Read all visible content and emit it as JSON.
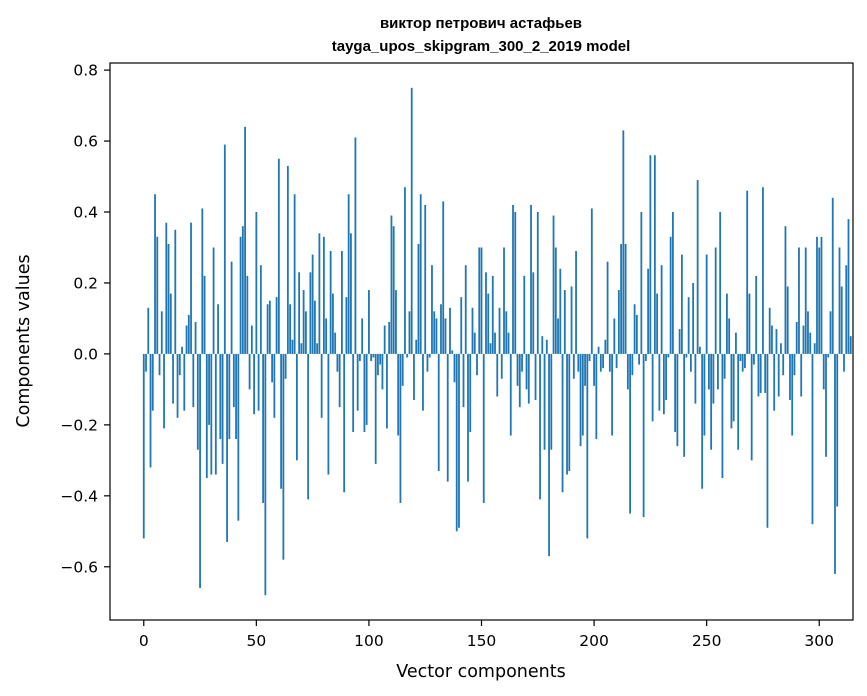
{
  "chart_data": {
    "type": "bar",
    "title": "виктор петрович астафьев",
    "subtitle": "tayga_upos_skipgram_300_2_2019 model",
    "xlabel": "Vector components",
    "ylabel": "Components values",
    "xlim": [
      -15,
      315
    ],
    "ylim": [
      -0.75,
      0.82
    ],
    "xticks": [
      0,
      50,
      100,
      150,
      200,
      250,
      300
    ],
    "yticks": [
      -0.6,
      -0.4,
      -0.2,
      0.0,
      0.2,
      0.4,
      0.6,
      0.8
    ],
    "ytick_labels": [
      "−0.6",
      "−0.4",
      "−0.2",
      "0.0",
      "0.2",
      "0.4",
      "0.6",
      "0.8"
    ],
    "bar_color": "#1f77b4",
    "grid": false,
    "values": [
      -0.52,
      -0.05,
      0.13,
      -0.32,
      -0.16,
      0.45,
      0.33,
      -0.06,
      0.12,
      -0.21,
      0.37,
      0.31,
      0.17,
      -0.14,
      0.35,
      -0.18,
      -0.06,
      0.02,
      -0.16,
      0.08,
      0.11,
      0.37,
      -0.15,
      0.09,
      -0.27,
      -0.66,
      0.41,
      0.22,
      -0.35,
      -0.2,
      -0.34,
      0.3,
      -0.34,
      0.14,
      -0.24,
      -0.31,
      0.59,
      -0.53,
      -0.24,
      0.26,
      -0.15,
      -0.24,
      -0.47,
      0.33,
      0.36,
      0.64,
      0.22,
      -0.1,
      0.08,
      -0.17,
      0.4,
      -0.16,
      0.25,
      -0.42,
      -0.68,
      0.14,
      0.15,
      -0.08,
      -0.18,
      0.16,
      0.55,
      -0.38,
      -0.58,
      -0.07,
      0.53,
      0.14,
      0.04,
      0.45,
      -0.3,
      0.23,
      0.03,
      0.18,
      0.12,
      -0.41,
      0.23,
      0.28,
      0.15,
      0.03,
      0.34,
      -0.18,
      0.33,
      0.1,
      -0.34,
      0.29,
      0.17,
      0.06,
      -0.05,
      -0.15,
      0.29,
      -0.39,
      0.16,
      0.45,
      0.34,
      -0.22,
      0.61,
      -0.16,
      -0.02,
      0.1,
      -0.22,
      -0.2,
      0.18,
      -0.02,
      -0.01,
      -0.31,
      -0.06,
      -0.03,
      -0.1,
      0.08,
      -0.21,
      0.09,
      0.39,
      0.36,
      0.18,
      -0.23,
      -0.42,
      -0.09,
      0.47,
      -0.01,
      0.12,
      0.75,
      -0.13,
      0.04,
      0.31,
      0.45,
      -0.16,
      0.42,
      -0.05,
      -0.01,
      0.25,
      0.12,
      0.1,
      -0.33,
      0.14,
      0.43,
      0.1,
      -0.36,
      0.13,
      0.01,
      -0.08,
      -0.5,
      -0.49,
      0.16,
      -0.15,
      0.25,
      -0.36,
      -0.22,
      0.13,
      0.06,
      -0.06,
      0.3,
      0.3,
      -0.42,
      0.23,
      0.17,
      0.03,
      0.22,
      0.06,
      -0.12,
      0.13,
      -0.07,
      0.3,
      0.12,
      0.06,
      -0.23,
      0.42,
      0.4,
      -0.09,
      -0.15,
      -0.05,
      0.22,
      -0.1,
      -0.14,
      0.42,
      0.23,
      -0.13,
      0.4,
      -0.41,
      0.05,
      -0.27,
      0.04,
      -0.57,
      -0.27,
      0.39,
      0.3,
      0.1,
      0.24,
      -0.39,
      0.18,
      -0.34,
      -0.33,
      0.19,
      -0.07,
      0.29,
      -0.05,
      -0.26,
      -0.23,
      -0.09,
      -0.52,
      -0.02,
      0.41,
      -0.09,
      -0.24,
      0.02,
      -0.05,
      -0.04,
      0.04,
      0.26,
      -0.05,
      -0.23,
      0.1,
      -0.04,
      0.18,
      0.31,
      0.63,
      0.31,
      -0.1,
      -0.45,
      -0.06,
      0.14,
      0.11,
      -0.03,
      0.4,
      -0.46,
      -0.02,
      0.24,
      0.56,
      -0.19,
      0.56,
      0.17,
      -0.16,
      0.25,
      -0.17,
      -0.13,
      -0.01,
      0.33,
      0.4,
      -0.22,
      -0.26,
      0.07,
      0.28,
      -0.29,
      -0.01,
      0.16,
      -0.05,
      0.2,
      -0.14,
      0.49,
      0.02,
      -0.38,
      -0.23,
      0.28,
      -0.1,
      -0.27,
      -0.14,
      0.3,
      -0.1,
      0.4,
      -0.35,
      -0.07,
      0.17,
      0.1,
      -0.21,
      -0.19,
      0.06,
      -0.27,
      -0.02,
      -0.05,
      -0.04,
      0.46,
      0.17,
      -0.3,
      -0.03,
      0.22,
      -0.12,
      -0.11,
      0.47,
      -0.11,
      -0.49,
      0.13,
      0.08,
      -0.16,
      0.07,
      -0.12,
      0.03,
      -0.06,
      0.36,
      0.19,
      -0.13,
      -0.23,
      -0.06,
      0.09,
      0.3,
      -0.12,
      0.08,
      0.3,
      0.12,
      0.06,
      -0.48,
      0.03,
      0.33,
      0.3,
      0.33,
      -0.1,
      -0.29,
      -0.01,
      0.12,
      0.44,
      -0.62,
      -0.43,
      0.3,
      0.19,
      -0.05,
      0.25,
      0.38,
      0.05
    ]
  }
}
